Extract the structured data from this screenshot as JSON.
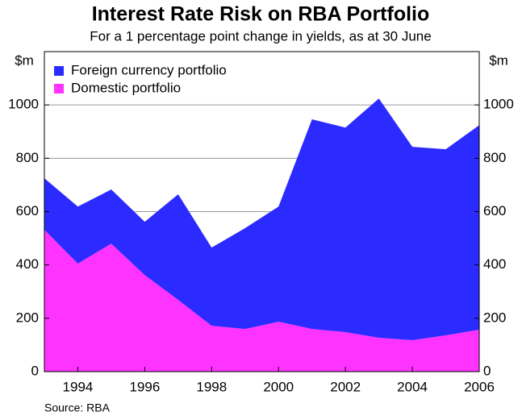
{
  "chart_data": {
    "type": "stacked_area",
    "title": "Interest Rate Risk on RBA Portfolio",
    "subtitle": "For a 1 percentage point change in yields, as at 30 June",
    "y_label": "$m",
    "y2_label": "$m",
    "source": "Source: RBA",
    "x": [
      1993,
      1994,
      1995,
      1996,
      1997,
      1998,
      1999,
      2000,
      2001,
      2002,
      2003,
      2004,
      2005,
      2006
    ],
    "series": [
      {
        "name": "Foreign currency portfolio",
        "color": "#2b2bff",
        "values": [
          193,
          214,
          203,
          200,
          396,
          293,
          378,
          432,
          786,
          767,
          897,
          725,
          698,
          767
        ]
      },
      {
        "name": "Domestic portfolio",
        "color": "#ff33ff",
        "values": [
          532,
          405,
          480,
          362,
          269,
          172,
          160,
          187,
          160,
          148,
          127,
          118,
          136,
          157
        ]
      }
    ],
    "xlim": [
      1993,
      2006
    ],
    "xticks": [
      1994,
      1996,
      1998,
      2000,
      2002,
      2004,
      2006
    ],
    "ylim": [
      0,
      1200
    ],
    "yticks": [
      0,
      200,
      400,
      600,
      800,
      1000
    ],
    "y2lim": [
      0,
      1200
    ],
    "y2ticks": [
      0,
      200,
      400,
      600,
      800,
      1000
    ],
    "grid": true,
    "legend": "top-left"
  }
}
